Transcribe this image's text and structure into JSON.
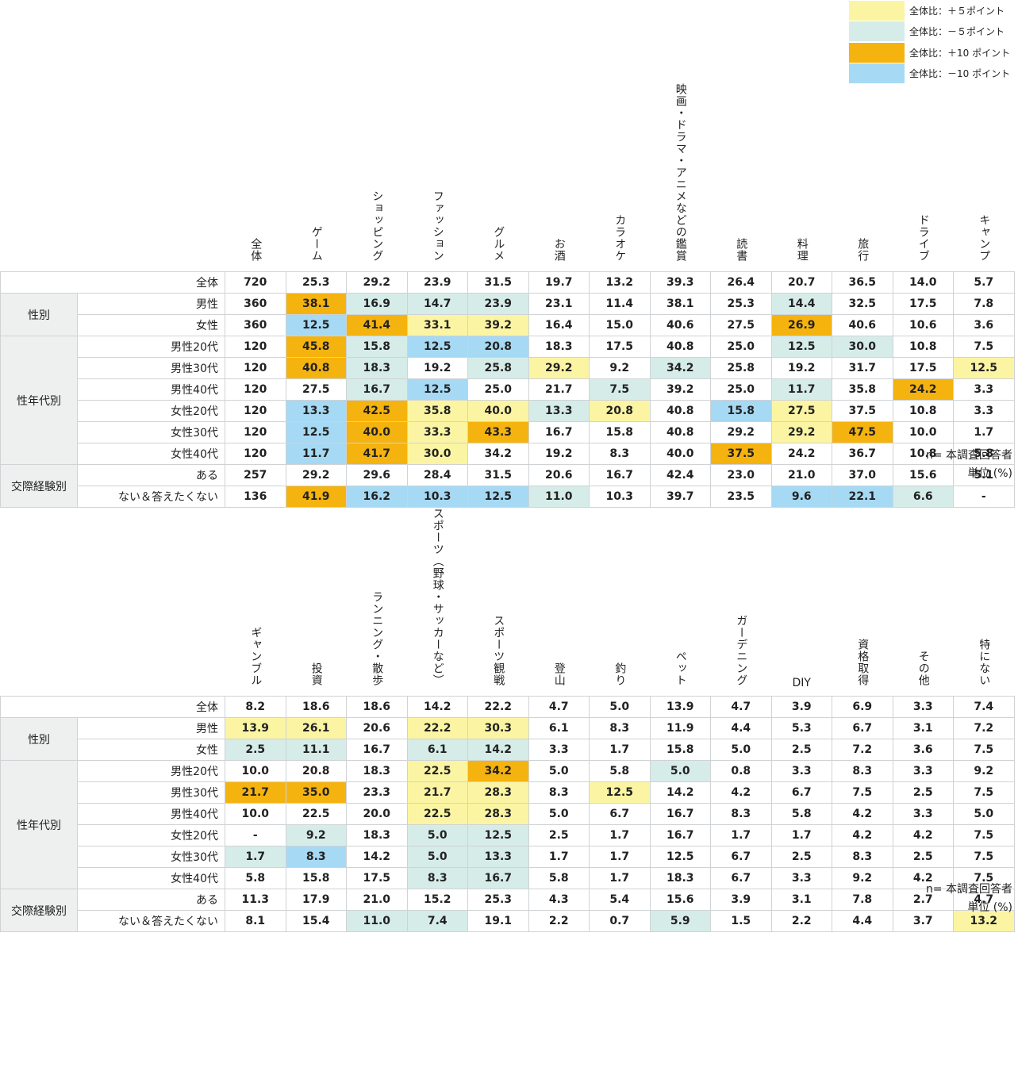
{
  "legend": [
    {
      "label": "全体比：＋５ポイント",
      "class": "p5"
    },
    {
      "label": "全体比：－５ポイント",
      "class": "m5"
    },
    {
      "label": "全体比：＋10 ポイント",
      "class": "p10"
    },
    {
      "label": "全体比：－10 ポイント",
      "class": "m10"
    }
  ],
  "colors": {
    "plus5": "#fbf5a3",
    "minus5": "#d6ece8",
    "plus10": "#f5b30f",
    "minus10": "#a6d9f3"
  },
  "rows": [
    {
      "group": "",
      "label": "全体"
    },
    {
      "group": "性別",
      "label": "男性"
    },
    {
      "group": "性別",
      "label": "女性"
    },
    {
      "group": "性年代別",
      "label": "男性20代"
    },
    {
      "group": "性年代別",
      "label": "男性30代"
    },
    {
      "group": "性年代別",
      "label": "男性40代"
    },
    {
      "group": "性年代別",
      "label": "女性20代"
    },
    {
      "group": "性年代別",
      "label": "女性30代"
    },
    {
      "group": "性年代別",
      "label": "女性40代"
    },
    {
      "group": "交際経験別",
      "label": "ある"
    },
    {
      "group": "交際経験別",
      "label": "ない＆答えたくない"
    }
  ],
  "groups": [
    "性別",
    "性年代別",
    "交際経験別"
  ],
  "table1": {
    "headers": [
      {
        "text": "全体",
        "vertical": true
      },
      {
        "text": "ゲーム",
        "vertical": true
      },
      {
        "text": "ショッピング",
        "vertical": true
      },
      {
        "text": "ファッション",
        "vertical": true
      },
      {
        "text": "グルメ",
        "vertical": true
      },
      {
        "text": "お酒",
        "vertical": true
      },
      {
        "text": "カラオケ",
        "vertical": true
      },
      {
        "text": "映画・ドラマ・アニメなどの鑑賞",
        "vertical": true
      },
      {
        "text": "読書",
        "vertical": true
      },
      {
        "text": "料理",
        "vertical": true
      },
      {
        "text": "旅行",
        "vertical": true
      },
      {
        "text": "ドライブ",
        "vertical": true
      },
      {
        "text": "キャンプ",
        "vertical": true
      }
    ],
    "values": [
      [
        "720",
        "25.3",
        "29.2",
        "23.9",
        "31.5",
        "19.7",
        "13.2",
        "39.3",
        "26.4",
        "20.7",
        "36.5",
        "14.0",
        "5.7"
      ],
      [
        "360",
        "38.1",
        "16.9",
        "14.7",
        "23.9",
        "23.1",
        "11.4",
        "38.1",
        "25.3",
        "14.4",
        "32.5",
        "17.5",
        "7.8"
      ],
      [
        "360",
        "12.5",
        "41.4",
        "33.1",
        "39.2",
        "16.4",
        "15.0",
        "40.6",
        "27.5",
        "26.9",
        "40.6",
        "10.6",
        "3.6"
      ],
      [
        "120",
        "45.8",
        "15.8",
        "12.5",
        "20.8",
        "18.3",
        "17.5",
        "40.8",
        "25.0",
        "12.5",
        "30.0",
        "10.8",
        "7.5"
      ],
      [
        "120",
        "40.8",
        "18.3",
        "19.2",
        "25.8",
        "29.2",
        "9.2",
        "34.2",
        "25.8",
        "19.2",
        "31.7",
        "17.5",
        "12.5"
      ],
      [
        "120",
        "27.5",
        "16.7",
        "12.5",
        "25.0",
        "21.7",
        "7.5",
        "39.2",
        "25.0",
        "11.7",
        "35.8",
        "24.2",
        "3.3"
      ],
      [
        "120",
        "13.3",
        "42.5",
        "35.8",
        "40.0",
        "13.3",
        "20.8",
        "40.8",
        "15.8",
        "27.5",
        "37.5",
        "10.8",
        "3.3"
      ],
      [
        "120",
        "12.5",
        "40.0",
        "33.3",
        "43.3",
        "16.7",
        "15.8",
        "40.8",
        "29.2",
        "29.2",
        "47.5",
        "10.0",
        "1.7"
      ],
      [
        "120",
        "11.7",
        "41.7",
        "30.0",
        "34.2",
        "19.2",
        "8.3",
        "40.0",
        "37.5",
        "24.2",
        "36.7",
        "10.8",
        "5.8"
      ],
      [
        "257",
        "29.2",
        "29.6",
        "28.4",
        "31.5",
        "20.6",
        "16.7",
        "42.4",
        "23.0",
        "21.0",
        "37.0",
        "15.6",
        "5.1"
      ],
      [
        "136",
        "41.9",
        "16.2",
        "10.3",
        "12.5",
        "11.0",
        "10.3",
        "39.7",
        "23.5",
        "9.6",
        "22.1",
        "6.6",
        "-"
      ]
    ],
    "highlights": [
      [
        "",
        "",
        "",
        "",
        "",
        "",
        "",
        "",
        "",
        "",
        "",
        "",
        ""
      ],
      [
        "",
        "p10",
        "m5",
        "m5",
        "m5",
        "",
        "",
        "",
        "",
        "m5",
        "",
        "",
        ""
      ],
      [
        "",
        "m10",
        "p10",
        "p5",
        "p5",
        "",
        "",
        "",
        "",
        "p10",
        "",
        "",
        ""
      ],
      [
        "",
        "p10",
        "m5",
        "m10",
        "m10",
        "",
        "",
        "",
        "",
        "m5",
        "m5",
        "",
        ""
      ],
      [
        "",
        "p10",
        "m5",
        "",
        "m5",
        "p5",
        "",
        "m5",
        "",
        "",
        "",
        "",
        "p5"
      ],
      [
        "",
        "",
        "m5",
        "m10",
        "",
        "",
        "m5",
        "",
        "",
        "m5",
        "",
        "p10",
        ""
      ],
      [
        "",
        "m10",
        "p10",
        "p5",
        "p5",
        "m5",
        "p5",
        "",
        "m10",
        "p5",
        "",
        "",
        ""
      ],
      [
        "",
        "m10",
        "p10",
        "p5",
        "p10",
        "",
        "",
        "",
        "",
        "p5",
        "p10",
        "",
        ""
      ],
      [
        "",
        "m10",
        "p10",
        "p5",
        "",
        "",
        "",
        "",
        "p10",
        "",
        "",
        "",
        ""
      ],
      [
        "",
        "",
        "",
        "",
        "",
        "",
        "",
        "",
        "",
        "",
        "",
        "",
        ""
      ],
      [
        "",
        "p10",
        "m10",
        "m10",
        "m10",
        "m5",
        "",
        "",
        "",
        "m10",
        "m10",
        "m5",
        ""
      ]
    ],
    "note": "n= 本調査回答者",
    "unit": "単位 (%)"
  },
  "table2": {
    "headers": [
      {
        "text": "ギャンブル",
        "vertical": true
      },
      {
        "text": "投資",
        "vertical": true
      },
      {
        "text": "ランニング・散歩",
        "vertical": true
      },
      {
        "text": "スポーツ（野球・サッカーなど）",
        "vertical": true
      },
      {
        "text": "スポーツ観戦",
        "vertical": true
      },
      {
        "text": "登山",
        "vertical": true
      },
      {
        "text": "釣り",
        "vertical": true
      },
      {
        "text": "ペット",
        "vertical": true
      },
      {
        "text": "ガーデニング",
        "vertical": true
      },
      {
        "text": "DIY",
        "vertical": false
      },
      {
        "text": "資格取得",
        "vertical": true
      },
      {
        "text": "その他",
        "vertical": true
      },
      {
        "text": "特にない",
        "vertical": true
      }
    ],
    "values": [
      [
        "8.2",
        "18.6",
        "18.6",
        "14.2",
        "22.2",
        "4.7",
        "5.0",
        "13.9",
        "4.7",
        "3.9",
        "6.9",
        "3.3",
        "7.4"
      ],
      [
        "13.9",
        "26.1",
        "20.6",
        "22.2",
        "30.3",
        "6.1",
        "8.3",
        "11.9",
        "4.4",
        "5.3",
        "6.7",
        "3.1",
        "7.2"
      ],
      [
        "2.5",
        "11.1",
        "16.7",
        "6.1",
        "14.2",
        "3.3",
        "1.7",
        "15.8",
        "5.0",
        "2.5",
        "7.2",
        "3.6",
        "7.5"
      ],
      [
        "10.0",
        "20.8",
        "18.3",
        "22.5",
        "34.2",
        "5.0",
        "5.8",
        "5.0",
        "0.8",
        "3.3",
        "8.3",
        "3.3",
        "9.2"
      ],
      [
        "21.7",
        "35.0",
        "23.3",
        "21.7",
        "28.3",
        "8.3",
        "12.5",
        "14.2",
        "4.2",
        "6.7",
        "7.5",
        "2.5",
        "7.5"
      ],
      [
        "10.0",
        "22.5",
        "20.0",
        "22.5",
        "28.3",
        "5.0",
        "6.7",
        "16.7",
        "8.3",
        "5.8",
        "4.2",
        "3.3",
        "5.0"
      ],
      [
        "-",
        "9.2",
        "18.3",
        "5.0",
        "12.5",
        "2.5",
        "1.7",
        "16.7",
        "1.7",
        "1.7",
        "4.2",
        "4.2",
        "7.5"
      ],
      [
        "1.7",
        "8.3",
        "14.2",
        "5.0",
        "13.3",
        "1.7",
        "1.7",
        "12.5",
        "6.7",
        "2.5",
        "8.3",
        "2.5",
        "7.5"
      ],
      [
        "5.8",
        "15.8",
        "17.5",
        "8.3",
        "16.7",
        "5.8",
        "1.7",
        "18.3",
        "6.7",
        "3.3",
        "9.2",
        "4.2",
        "7.5"
      ],
      [
        "11.3",
        "17.9",
        "21.0",
        "15.2",
        "25.3",
        "4.3",
        "5.4",
        "15.6",
        "3.9",
        "3.1",
        "7.8",
        "2.7",
        "4.7"
      ],
      [
        "8.1",
        "15.4",
        "11.0",
        "7.4",
        "19.1",
        "2.2",
        "0.7",
        "5.9",
        "1.5",
        "2.2",
        "4.4",
        "3.7",
        "13.2"
      ]
    ],
    "highlights": [
      [
        "",
        "",
        "",
        "",
        "",
        "",
        "",
        "",
        "",
        "",
        "",
        "",
        ""
      ],
      [
        "p5",
        "p5",
        "",
        "p5",
        "p5",
        "",
        "",
        "",
        "",
        "",
        "",
        "",
        ""
      ],
      [
        "m5",
        "m5",
        "",
        "m5",
        "m5",
        "",
        "",
        "",
        "",
        "",
        "",
        "",
        ""
      ],
      [
        "",
        "",
        "",
        "p5",
        "p10",
        "",
        "",
        "m5",
        "",
        "",
        "",
        "",
        ""
      ],
      [
        "p10",
        "p10",
        "",
        "p5",
        "p5",
        "",
        "p5",
        "",
        "",
        "",
        "",
        "",
        ""
      ],
      [
        "",
        "",
        "",
        "p5",
        "p5",
        "",
        "",
        "",
        "",
        "",
        "",
        "",
        ""
      ],
      [
        "",
        "m5",
        "",
        "m5",
        "m5",
        "",
        "",
        "",
        "",
        "",
        "",
        "",
        ""
      ],
      [
        "m5",
        "m10",
        "",
        "m5",
        "m5",
        "",
        "",
        "",
        "",
        "",
        "",
        "",
        ""
      ],
      [
        "",
        "",
        "",
        "m5",
        "m5",
        "",
        "",
        "",
        "",
        "",
        "",
        "",
        ""
      ],
      [
        "",
        "",
        "",
        "",
        "",
        "",
        "",
        "",
        "",
        "",
        "",
        "",
        ""
      ],
      [
        "",
        "",
        "m5",
        "m5",
        "",
        "",
        "",
        "m5",
        "",
        "",
        "",
        "",
        "p5"
      ]
    ],
    "note": "n= 本調査回答者",
    "unit": "単位 (%)"
  }
}
